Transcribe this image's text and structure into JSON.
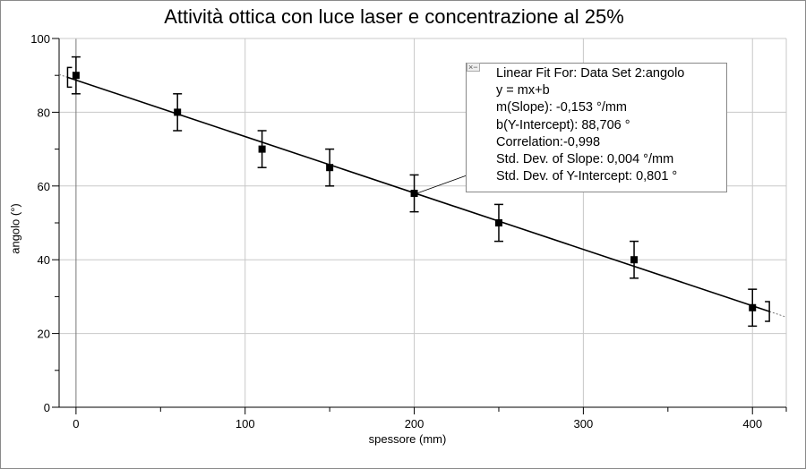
{
  "chart_data": {
    "type": "scatter",
    "title": "Attività ottica con luce laser e concentrazione al 25%",
    "xlabel": "spessore (mm)",
    "ylabel": "angolo (°)",
    "xlim": [
      -10,
      420
    ],
    "ylim": [
      0,
      100
    ],
    "xticks": [
      0,
      100,
      200,
      300,
      400
    ],
    "yticks": [
      0,
      20,
      40,
      60,
      80,
      100
    ],
    "grid": true,
    "points": [
      {
        "x": 0,
        "y": 90,
        "err": 5
      },
      {
        "x": 60,
        "y": 80,
        "err": 5
      },
      {
        "x": 110,
        "y": 70,
        "err": 5
      },
      {
        "x": 150,
        "y": 65,
        "err": 5
      },
      {
        "x": 200,
        "y": 58,
        "err": 5
      },
      {
        "x": 250,
        "y": 50,
        "err": 5
      },
      {
        "x": 330,
        "y": 40,
        "err": 5
      },
      {
        "x": 400,
        "y": 27,
        "err": 5
      }
    ],
    "fit": {
      "slope": -0.153,
      "intercept": 88.706,
      "range": [
        -5,
        410
      ]
    },
    "annotation": {
      "lines": [
        "Linear Fit For:  Data Set 2:angolo",
        "y = mx+b",
        "m(Slope): -0,153 °/mm",
        "b(Y-Intercept): 88,706 °",
        "Correlation:-0,998",
        "Std. Dev. of Slope: 0,004 °/mm",
        "Std. Dev. of Y-Intercept: 0,801 °"
      ],
      "anchor_x": 200
    }
  }
}
